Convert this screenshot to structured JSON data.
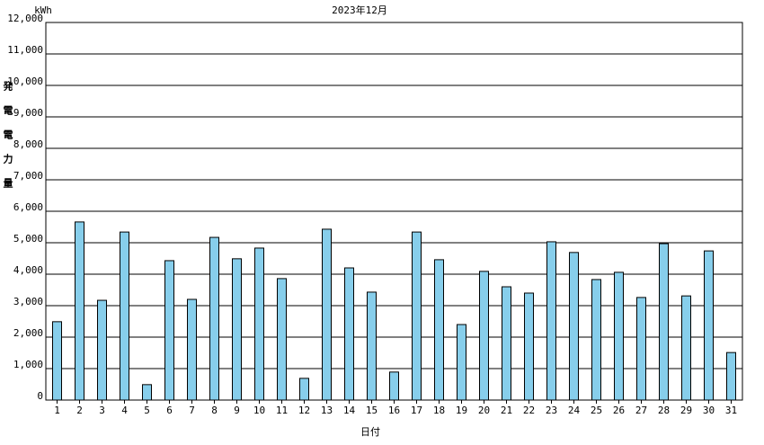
{
  "chart_data": {
    "type": "bar",
    "title": "2023年12月",
    "y_unit": "kWh",
    "y_label": "発電電力量",
    "x_label": "日付",
    "categories": [
      "1",
      "2",
      "3",
      "4",
      "5",
      "6",
      "7",
      "8",
      "9",
      "10",
      "11",
      "12",
      "13",
      "14",
      "15",
      "16",
      "17",
      "18",
      "19",
      "20",
      "21",
      "22",
      "23",
      "24",
      "25",
      "26",
      "27",
      "28",
      "29",
      "30",
      "31"
    ],
    "values": [
      2490,
      5660,
      3170,
      5340,
      490,
      4430,
      3200,
      5170,
      4490,
      4830,
      3860,
      690,
      5430,
      4200,
      3430,
      890,
      5340,
      4460,
      2400,
      4090,
      3600,
      3400,
      5030,
      4690,
      3830,
      4060,
      3260,
      4970,
      3310,
      4740,
      1510
    ],
    "color": "#87ceeb",
    "ylim": [
      0,
      12000
    ],
    "yticks": [
      0,
      {
        "value": 1000,
        "label": "1,000"
      },
      {
        "value": 2000,
        "label": "2,000"
      },
      {
        "value": 3000,
        "label": "3,000"
      },
      {
        "value": 4000,
        "label": "4,000"
      },
      {
        "value": 5000,
        "label": "5,000"
      },
      {
        "value": 6000,
        "label": "6,000"
      },
      {
        "value": 7000,
        "label": "7,000"
      },
      {
        "value": 8000,
        "label": "8,000"
      },
      {
        "value": 9000,
        "label": "9,000"
      },
      {
        "value": 10000,
        "label": "10,000"
      },
      {
        "value": 11000,
        "label": "11,000"
      },
      {
        "value": 12000,
        "label": "12,000"
      }
    ],
    "grid": true
  }
}
